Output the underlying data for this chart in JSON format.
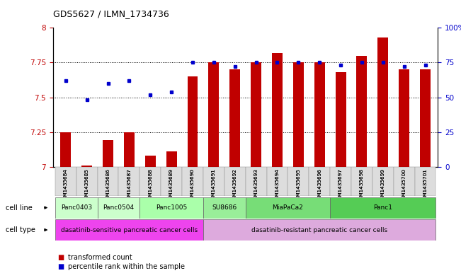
{
  "title": "GDS5627 / ILMN_1734736",
  "samples": [
    "GSM1435684",
    "GSM1435685",
    "GSM1435686",
    "GSM1435687",
    "GSM1435688",
    "GSM1435689",
    "GSM1435690",
    "GSM1435691",
    "GSM1435692",
    "GSM1435693",
    "GSM1435694",
    "GSM1435695",
    "GSM1435696",
    "GSM1435697",
    "GSM1435698",
    "GSM1435699",
    "GSM1435700",
    "GSM1435701"
  ],
  "bar_values": [
    7.25,
    7.01,
    7.19,
    7.25,
    7.08,
    7.11,
    7.65,
    7.75,
    7.7,
    7.75,
    7.82,
    7.75,
    7.75,
    7.68,
    7.8,
    7.93,
    7.7,
    7.7
  ],
  "dot_values": [
    62,
    48,
    60,
    62,
    52,
    54,
    75,
    75,
    72,
    75,
    75,
    75,
    75,
    73,
    75,
    75,
    72,
    73
  ],
  "ylim_left": [
    7.0,
    8.0
  ],
  "ylim_right": [
    0,
    100
  ],
  "yticks_left": [
    7.0,
    7.25,
    7.5,
    7.75,
    8.0
  ],
  "ytick_labels_left": [
    "7",
    "7.25",
    "7.5",
    "7.75",
    "8"
  ],
  "yticks_right": [
    0,
    25,
    50,
    75,
    100
  ],
  "ytick_labels_right": [
    "0",
    "25",
    "50",
    "75",
    "100%"
  ],
  "bar_color": "#c00000",
  "dot_color": "#0000cc",
  "cell_lines": [
    {
      "label": "Panc0403",
      "start": 0,
      "end": 1
    },
    {
      "label": "Panc0504",
      "start": 2,
      "end": 3
    },
    {
      "label": "Panc1005",
      "start": 4,
      "end": 6
    },
    {
      "label": "SU8686",
      "start": 6,
      "end": 9
    },
    {
      "label": "MiaPaCa2",
      "start": 9,
      "end": 13
    },
    {
      "label": "Panc1",
      "start": 13,
      "end": 17
    }
  ],
  "cell_line_colors": [
    "#ccffcc",
    "#ccffcc",
    "#ccffcc",
    "#99ee99",
    "#99ee99",
    "#66dd66"
  ],
  "cell_types": [
    {
      "label": "dasatinib-sensitive pancreatic cancer cells",
      "start": 0,
      "end": 6
    },
    {
      "label": "dasatinib-resistant pancreatic cancer cells",
      "start": 6,
      "end": 17
    }
  ],
  "cell_type_colors": [
    "#ee55ee",
    "#ddaadd"
  ],
  "n_samples": 18,
  "legend_red": "transformed count",
  "legend_blue": "percentile rank within the sample",
  "bar_width": 0.5
}
